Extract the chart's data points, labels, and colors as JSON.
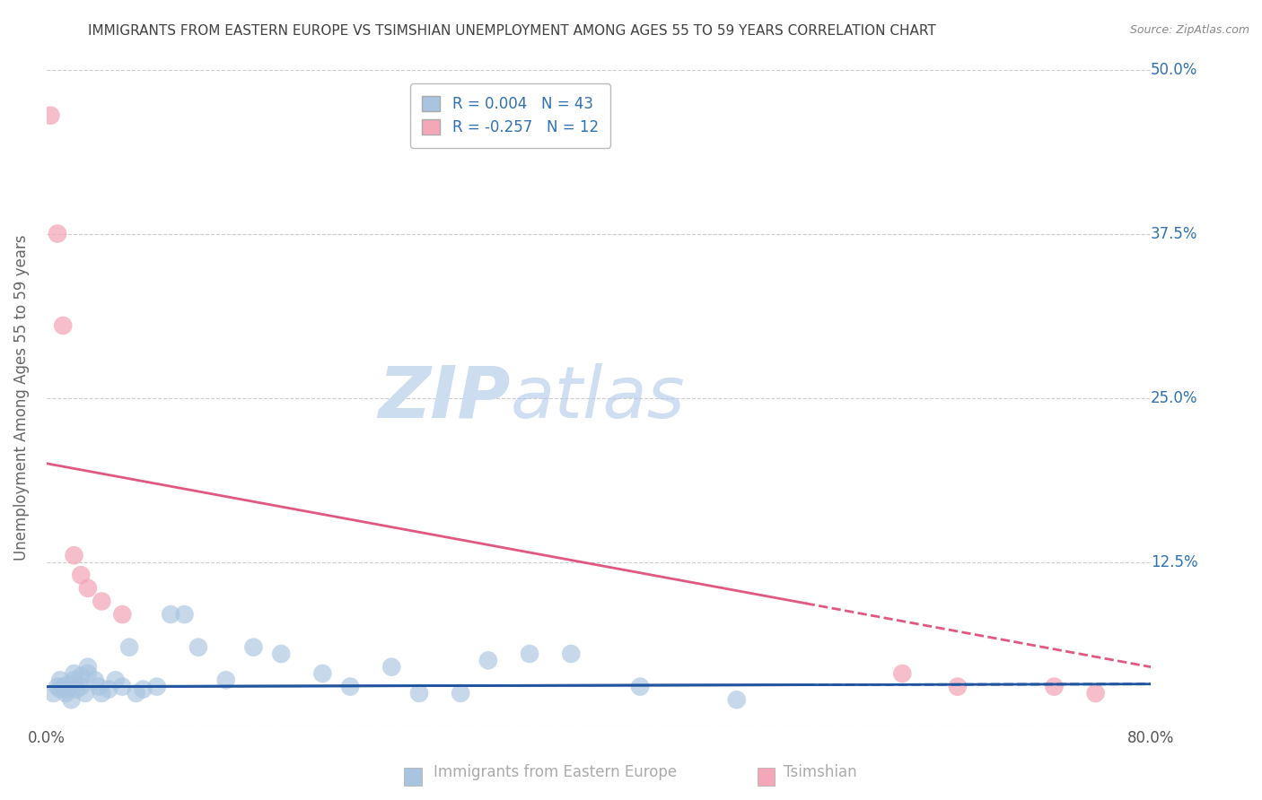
{
  "title": "IMMIGRANTS FROM EASTERN EUROPE VS TSIMSHIAN UNEMPLOYMENT AMONG AGES 55 TO 59 YEARS CORRELATION CHART",
  "source": "Source: ZipAtlas.com",
  "ylabel": "Unemployment Among Ages 55 to 59 years",
  "xlim": [
    0.0,
    0.8
  ],
  "ylim": [
    0.0,
    0.5
  ],
  "xticks": [
    0.0,
    0.2,
    0.4,
    0.6,
    0.8
  ],
  "xticklabels": [
    "0.0%",
    "",
    "",
    "",
    "80.0%"
  ],
  "yticks": [
    0.0,
    0.125,
    0.25,
    0.375,
    0.5
  ],
  "yticklabels": [
    "",
    "12.5%",
    "25.0%",
    "37.5%",
    "50.0%"
  ],
  "blue_R": 0.004,
  "blue_N": 43,
  "pink_R": -0.257,
  "pink_N": 12,
  "blue_color": "#a8c4e0",
  "pink_color": "#f4a7b9",
  "blue_line_color": "#2255a0",
  "pink_line_color": "#e05880",
  "legend_text_color": "#3070b0",
  "watermark_zip": "ZIP",
  "watermark_atlas": "atlas",
  "background_color": "#ffffff",
  "grid_color": "#cccccc",
  "title_color": "#404040",
  "blue_scatter_x": [
    0.005,
    0.008,
    0.01,
    0.01,
    0.012,
    0.014,
    0.015,
    0.016,
    0.018,
    0.02,
    0.02,
    0.022,
    0.025,
    0.025,
    0.028,
    0.03,
    0.03,
    0.035,
    0.038,
    0.04,
    0.045,
    0.05,
    0.055,
    0.06,
    0.065,
    0.07,
    0.08,
    0.09,
    0.1,
    0.11,
    0.13,
    0.15,
    0.17,
    0.2,
    0.22,
    0.25,
    0.27,
    0.3,
    0.32,
    0.35,
    0.38,
    0.43,
    0.5
  ],
  "blue_scatter_y": [
    0.025,
    0.03,
    0.028,
    0.035,
    0.03,
    0.025,
    0.028,
    0.032,
    0.02,
    0.035,
    0.04,
    0.028,
    0.03,
    0.038,
    0.025,
    0.04,
    0.045,
    0.035,
    0.03,
    0.025,
    0.028,
    0.035,
    0.03,
    0.06,
    0.025,
    0.028,
    0.03,
    0.085,
    0.085,
    0.06,
    0.035,
    0.06,
    0.055,
    0.04,
    0.03,
    0.045,
    0.025,
    0.025,
    0.05,
    0.055,
    0.055,
    0.03,
    0.02
  ],
  "pink_scatter_x": [
    0.003,
    0.008,
    0.012,
    0.02,
    0.025,
    0.03,
    0.04,
    0.055,
    0.62,
    0.66,
    0.73,
    0.76
  ],
  "pink_scatter_y": [
    0.465,
    0.375,
    0.305,
    0.13,
    0.115,
    0.105,
    0.095,
    0.085,
    0.04,
    0.03,
    0.03,
    0.025
  ],
  "blue_trend_x": [
    0.0,
    0.8
  ],
  "blue_trend_y": [
    0.03,
    0.032
  ],
  "pink_trend_x": [
    0.0,
    0.8
  ],
  "pink_trend_y": [
    0.2,
    0.045
  ]
}
